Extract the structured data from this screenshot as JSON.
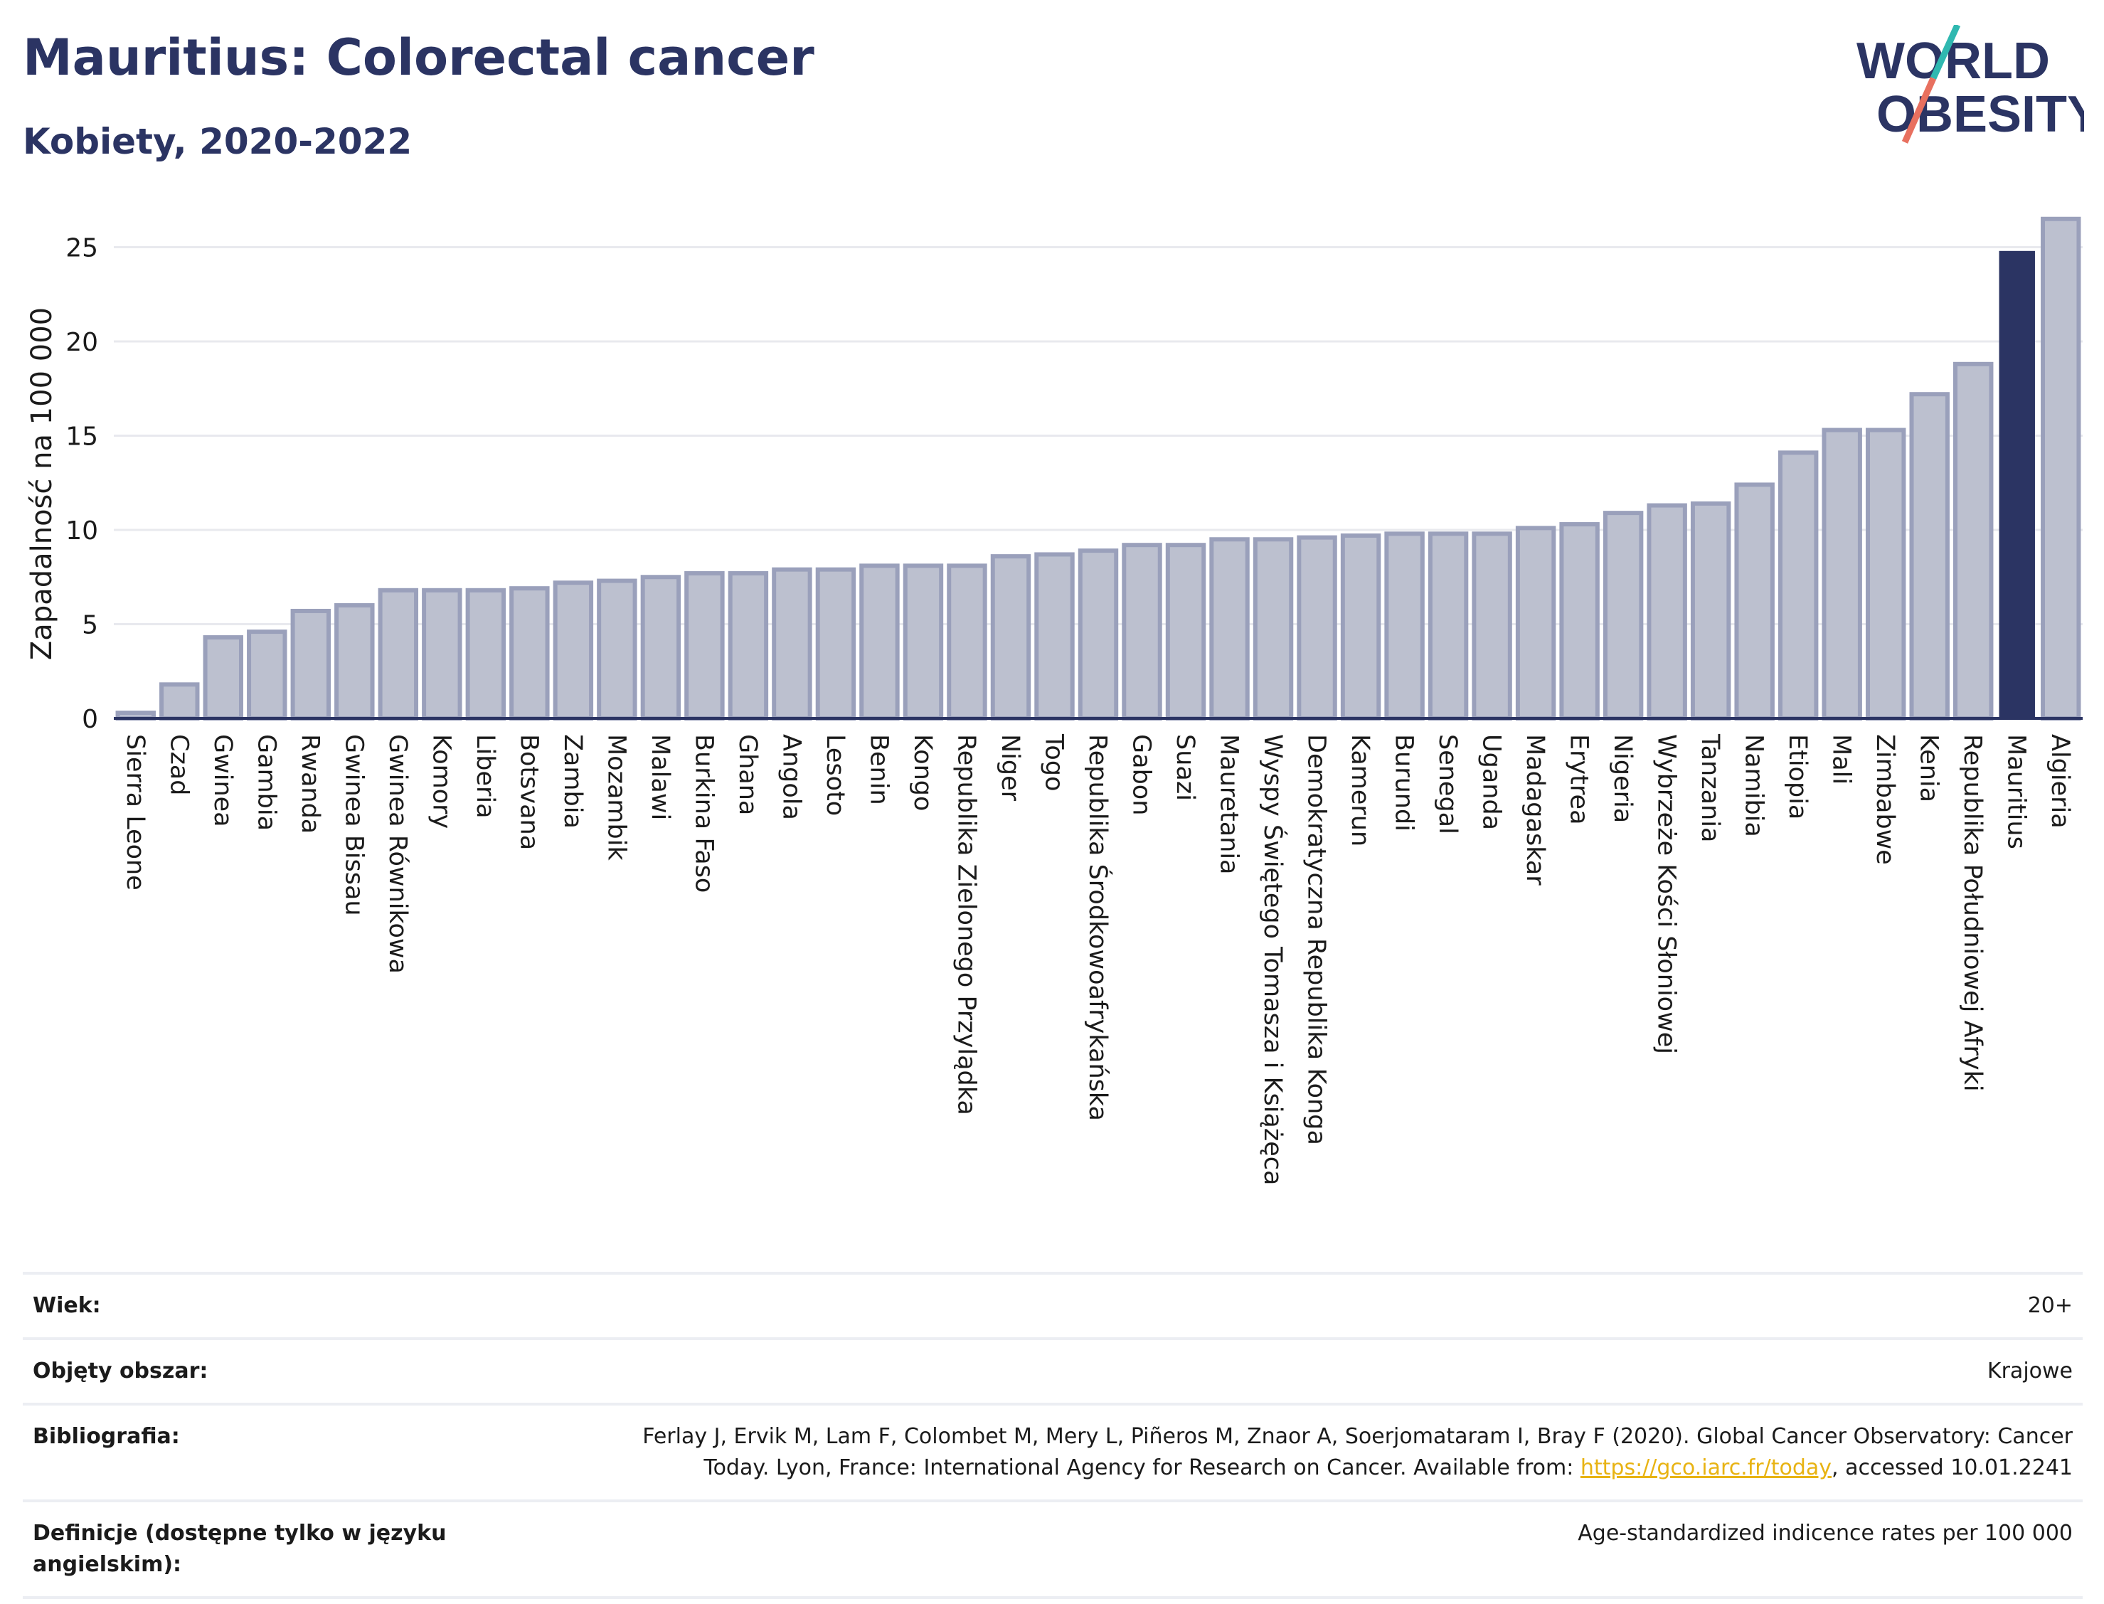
{
  "header": {
    "title": "Mauritius: Colorectal cancer",
    "subtitle": "Kobiety, 2020-2022"
  },
  "logo": {
    "line1": "WORLD",
    "line2": "OBESITY"
  },
  "chart_data": {
    "type": "bar",
    "ylabel": "Zapadalność na 100 000",
    "ylim": [
      0,
      27
    ],
    "yticks": [
      0,
      5,
      10,
      15,
      20,
      25
    ],
    "grid": true,
    "highlight": "Mauritius",
    "colors": {
      "bar": "#bcc0cf",
      "bar_edge": "#9aa0bb",
      "highlight": "#2b3463",
      "grid": "#e8e9ee"
    },
    "categories": [
      "Sierra Leone",
      "Czad",
      "Gwinea",
      "Gambia",
      "Rwanda",
      "Gwinea Bissau",
      "Gwinea Równikowa",
      "Komory",
      "Liberia",
      "Botsvana",
      "Zambia",
      "Mozambik",
      "Malawi",
      "Burkina Faso",
      "Ghana",
      "Angola",
      "Lesoto",
      "Benin",
      "Kongo",
      "Republika Zielonego Przylądka",
      "Niger",
      "Togo",
      "Republika Środkowoafrykańska",
      "Gabon",
      "Suazi",
      "Mauretania",
      "Wyspy Świętego Tomasza i Książęca",
      "Demokratyczna Republika Konga",
      "Kamerun",
      "Burundi",
      "Senegal",
      "Uganda",
      "Madagaskar",
      "Erytrea",
      "Nigeria",
      "Wybrzeże Kości Słoniowej",
      "Tanzania",
      "Namibia",
      "Etiopia",
      "Mali",
      "Zimbabwe",
      "Kenia",
      "Republika Południowej Afryki",
      "Mauritius",
      "Algieria"
    ],
    "values": [
      0.3,
      1.8,
      4.3,
      4.6,
      5.7,
      6.0,
      6.8,
      6.8,
      6.8,
      6.9,
      7.2,
      7.3,
      7.5,
      7.7,
      7.7,
      7.9,
      7.9,
      8.1,
      8.1,
      8.1,
      8.6,
      8.7,
      8.9,
      9.2,
      9.2,
      9.5,
      9.5,
      9.6,
      9.7,
      9.8,
      9.8,
      9.8,
      10.1,
      10.3,
      10.9,
      11.3,
      11.4,
      12.4,
      14.1,
      15.3,
      15.3,
      17.2,
      18.8,
      24.8,
      26.5
    ]
  },
  "meta": {
    "age_label": "Wiek:",
    "age_value": "20+",
    "area_label": "Objęty obszar:",
    "area_value": "Krajowe",
    "biblio_label": "Bibliografia:",
    "biblio_value_line1": "Ferlay J, Ervik M, Lam F, Colombet M, Mery L, Piñeros M, Znaor A, Soerjomataram I, Bray F (2020). Global Cancer Observatory: Cancer",
    "biblio_value_line2_pre": "Today. Lyon, France: International Agency for Research on Cancer. Available from: ",
    "biblio_link": "https://gco.iarc.fr/today",
    "biblio_value_line2_post": ", accessed 10.01.2241",
    "def_label": "Definicje (dostępne tylko w języku angielskim):",
    "def_value": "Age-standardized indicence rates per 100 000"
  }
}
